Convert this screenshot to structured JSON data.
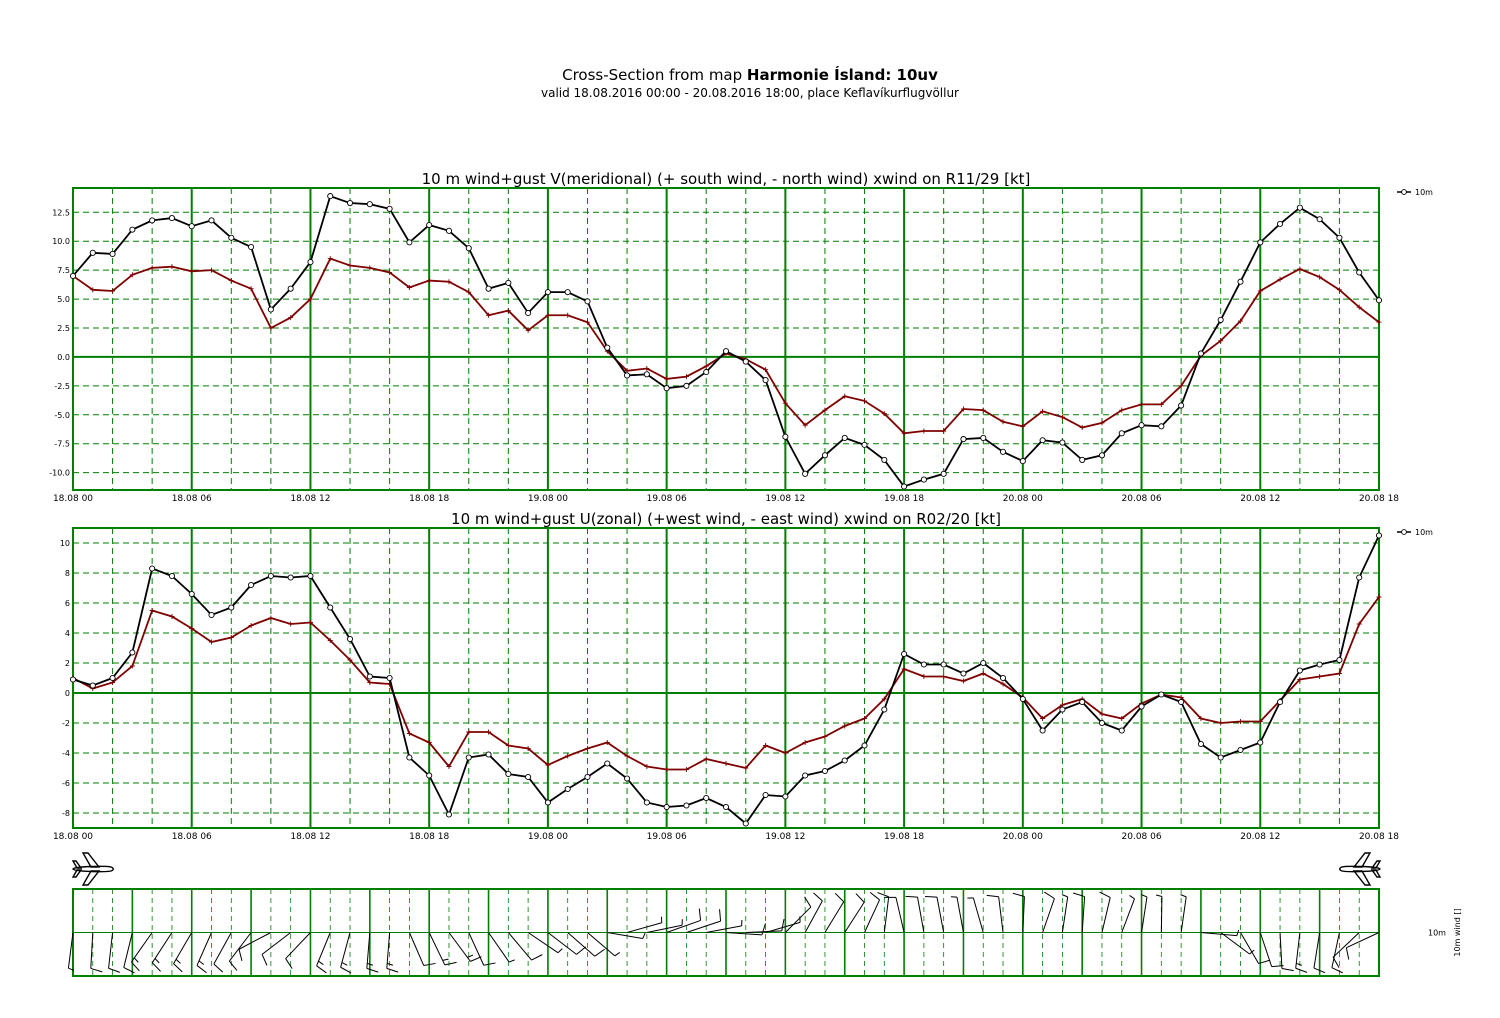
{
  "header": {
    "line1_prefix": "Cross-Section from map",
    "line1_bold": "Harmonie Ísland:  10uv",
    "line2": "valid 18.08.2016 00:00 - 20.08.2016 18:00, place Keflavíkurflugvöllur"
  },
  "colors": {
    "grid": "#007f00",
    "wind": "#000000",
    "gust": "#7f0000"
  },
  "chart_data": [
    {
      "type": "line",
      "title": "10 m wind+gust V(meridional) (+ south wind, - north wind) xwind on R11/29 [kt]",
      "x_tick_labels": [
        "18.08 00",
        "18.08 06",
        "18.08 12",
        "18.08 18",
        "19.08 00",
        "19.08 06",
        "19.08 12",
        "19.08 18",
        "20.08 00",
        "20.08 06",
        "20.08 12",
        "20.08 18"
      ],
      "x_unit": "hours from 18.08 00",
      "xlim": [
        0,
        66
      ],
      "ylim": [
        -11.5,
        14.6
      ],
      "y_ticks": [
        -10.0,
        -7.5,
        -5.0,
        -2.5,
        0.0,
        2.5,
        5.0,
        7.5,
        10.0,
        12.5
      ],
      "y_tick_labels": [
        "-10.0",
        "-7.5",
        "-5.0",
        "-2.5",
        "0.0",
        "2.5",
        "5.0",
        "7.5",
        "10.0",
        "12.5"
      ],
      "legend": "10m",
      "legend_position": "top-right",
      "series": [
        {
          "role": "wind",
          "marker": "circle",
          "name": "10m",
          "values": [
            7.0,
            9.0,
            8.9,
            11.0,
            11.8,
            12.0,
            11.3,
            11.8,
            10.3,
            9.5,
            4.1,
            5.9,
            8.2,
            13.9,
            13.3,
            13.2,
            12.8,
            9.9,
            11.4,
            10.9,
            9.4,
            5.9,
            6.4,
            3.8,
            5.6,
            5.6,
            4.8,
            0.8,
            -1.6,
            -1.5,
            -2.7,
            -2.5,
            -1.3,
            0.5,
            -0.4,
            -2.0,
            -6.9,
            -10.1,
            -8.5,
            -7.0,
            -7.6,
            -8.9,
            -11.2,
            -10.6,
            -10.1,
            -7.1,
            -7.0,
            -8.2,
            -9.0,
            -7.2,
            -7.4,
            -8.9,
            -8.5,
            -6.6,
            -5.9,
            -6.0,
            -4.2,
            0.3,
            3.2,
            6.5,
            9.9,
            11.5,
            12.9,
            11.9,
            10.3,
            7.3,
            4.9
          ]
        },
        {
          "role": "gust",
          "marker": "plus",
          "values": [
            7.0,
            5.8,
            5.7,
            7.1,
            7.7,
            7.8,
            7.4,
            7.5,
            6.6,
            5.9,
            2.5,
            3.4,
            5.0,
            8.5,
            7.9,
            7.7,
            7.3,
            6.0,
            6.6,
            6.5,
            5.6,
            3.6,
            4.0,
            2.3,
            3.6,
            3.6,
            3.0,
            0.5,
            -1.2,
            -1.0,
            -1.9,
            -1.7,
            -0.8,
            0.3,
            -0.2,
            -1.1,
            -4.0,
            -5.9,
            -4.6,
            -3.4,
            -3.8,
            -4.9,
            -6.6,
            -6.4,
            -6.4,
            -4.5,
            -4.6,
            -5.6,
            -6.0,
            -4.7,
            -5.2,
            -6.1,
            -5.7,
            -4.6,
            -4.1,
            -4.1,
            -2.5,
            0.1,
            1.4,
            3.1,
            5.7,
            6.7,
            7.6,
            6.9,
            5.8,
            4.3,
            3.0
          ]
        }
      ]
    },
    {
      "type": "line",
      "title": "10 m wind+gust U(zonal) (+west wind, - east wind) xwind on R02/20 [kt]",
      "x_tick_labels": [
        "18.08 00",
        "18.08 06",
        "18.08 12",
        "18.08 18",
        "19.08 00",
        "19.08 06",
        "19.08 12",
        "19.08 18",
        "20.08 00",
        "20.08 06",
        "20.08 12",
        "20.08 18"
      ],
      "x_unit": "hours from 18.08 00",
      "xlim": [
        0,
        66
      ],
      "ylim": [
        -9.0,
        11.0
      ],
      "y_ticks": [
        -8,
        -6,
        -4,
        -2,
        0,
        2,
        4,
        6,
        8,
        10
      ],
      "y_tick_labels": [
        "-8",
        "-6",
        "-4",
        "-2",
        "0",
        "2",
        "4",
        "6",
        "8",
        "10"
      ],
      "legend": "10m",
      "legend_position": "top-right",
      "series": [
        {
          "role": "wind",
          "marker": "circle",
          "name": "10m",
          "values": [
            0.9,
            0.5,
            1.0,
            2.7,
            8.3,
            7.8,
            6.6,
            5.2,
            5.7,
            7.2,
            7.8,
            7.7,
            7.8,
            5.7,
            3.6,
            1.1,
            1.0,
            -4.3,
            -5.5,
            -8.1,
            -4.3,
            -4.1,
            -5.4,
            -5.6,
            -7.3,
            -6.4,
            -5.6,
            -4.7,
            -5.7,
            -7.3,
            -7.6,
            -7.5,
            -7.0,
            -7.6,
            -8.7,
            -6.8,
            -6.9,
            -5.5,
            -5.2,
            -4.5,
            -3.5,
            -1.1,
            2.6,
            1.9,
            1.9,
            1.3,
            2.0,
            1.0,
            -0.4,
            -2.5,
            -1.1,
            -0.6,
            -2.0,
            -2.5,
            -0.9,
            -0.1,
            -0.6,
            -3.4,
            -4.3,
            -3.8,
            -3.3,
            -0.6,
            1.5,
            1.9,
            2.2,
            7.7,
            10.5
          ]
        },
        {
          "role": "gust",
          "marker": "plus",
          "values": [
            1.0,
            0.3,
            0.7,
            1.8,
            5.5,
            5.1,
            4.3,
            3.4,
            3.7,
            4.5,
            5.0,
            4.6,
            4.7,
            3.5,
            2.2,
            0.7,
            0.6,
            -2.7,
            -3.3,
            -4.9,
            -2.6,
            -2.6,
            -3.5,
            -3.7,
            -4.8,
            -4.2,
            -3.7,
            -3.3,
            -4.2,
            -4.9,
            -5.1,
            -5.1,
            -4.4,
            -4.7,
            -5.0,
            -3.5,
            -4.0,
            -3.3,
            -2.9,
            -2.2,
            -1.7,
            -0.4,
            1.6,
            1.1,
            1.1,
            0.8,
            1.3,
            0.6,
            -0.3,
            -1.7,
            -0.8,
            -0.4,
            -1.4,
            -1.7,
            -0.7,
            -0.1,
            -0.3,
            -1.7,
            -2.0,
            -1.9,
            -1.9,
            -0.5,
            0.9,
            1.1,
            1.3,
            4.6,
            6.4
          ]
        }
      ]
    },
    {
      "type": "barbs",
      "ylabel": "10m wind []",
      "row_label": "10m",
      "x_tick_labels": [
        "18.08 00",
        "18.08 06",
        "18.08 12",
        "18.08 18",
        "19.08 00",
        "19.08 06",
        "19.08 12",
        "19.08 18",
        "20.08 00",
        "20.08 06",
        "20.08 12",
        "20.08 18"
      ],
      "icons": [
        "airplane-icon",
        "airplane-icon"
      ]
    }
  ]
}
